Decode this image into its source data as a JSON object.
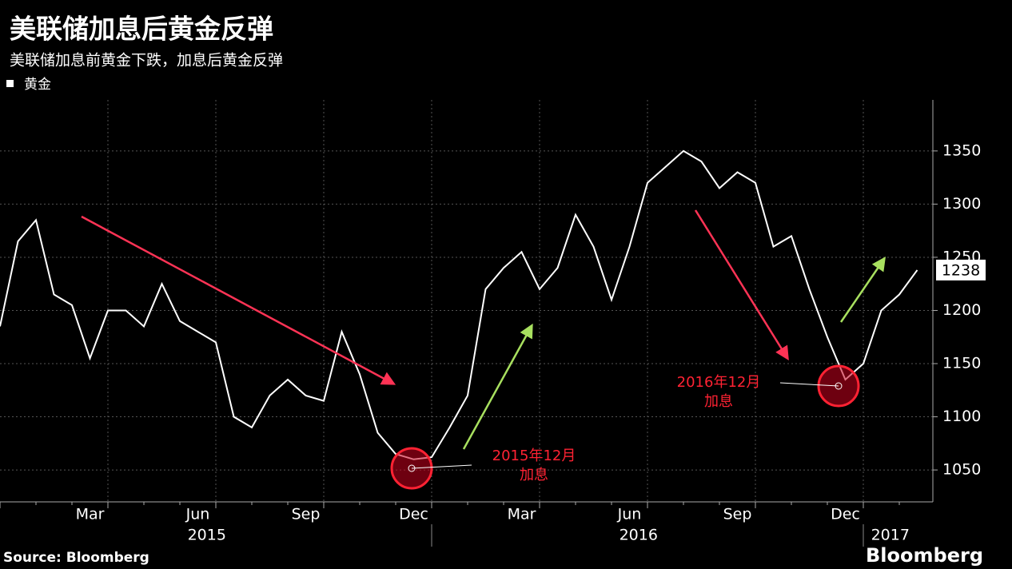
{
  "chart_data": {
    "type": "line",
    "title": "美联储加息后黄金反弹",
    "subtitle": "美联储加息前黄金下跌，加息后黄金反弹",
    "categories": [
      null,
      null,
      null,
      null,
      null,
      "Mar",
      null,
      null,
      null,
      null,
      null,
      "Jun",
      null,
      null,
      null,
      null,
      null,
      "Sep",
      null,
      null,
      null,
      null,
      null,
      "Dec",
      null,
      null,
      null,
      null,
      null,
      "Mar",
      null,
      null,
      null,
      null,
      null,
      "Jun",
      null,
      null,
      null,
      null,
      null,
      "Sep",
      null,
      null,
      null,
      null,
      null,
      "Dec",
      null,
      null,
      null,
      null
    ],
    "years": [
      "2015",
      "2016",
      "2017"
    ],
    "series": [
      {
        "name": "黄金",
        "color": "#ffffff",
        "values": [
          1185,
          1265,
          1285,
          1215,
          1205,
          1155,
          1200,
          1200,
          1185,
          1225,
          1190,
          1180,
          1170,
          1100,
          1090,
          1120,
          1135,
          1120,
          1115,
          1180,
          1140,
          1085,
          1065,
          1060,
          1062,
          1090,
          1120,
          1220,
          1240,
          1255,
          1220,
          1240,
          1290,
          1260,
          1210,
          1260,
          1320,
          1335,
          1350,
          1340,
          1315,
          1330,
          1320,
          1260,
          1270,
          1220,
          1175,
          1135,
          1150,
          1200,
          1215,
          1238
        ]
      }
    ],
    "ylim": [
      1020,
      1398
    ],
    "yticks": [
      1050,
      1100,
      1150,
      1200,
      1250,
      1300,
      1350
    ],
    "grid": true,
    "annotations": [
      {
        "lines": [
          "2015年12月",
          "加息"
        ]
      },
      {
        "lines": [
          "2016年12月",
          "加息"
        ]
      }
    ],
    "source": "Source: Bloomberg",
    "brand": "Bloomberg"
  }
}
